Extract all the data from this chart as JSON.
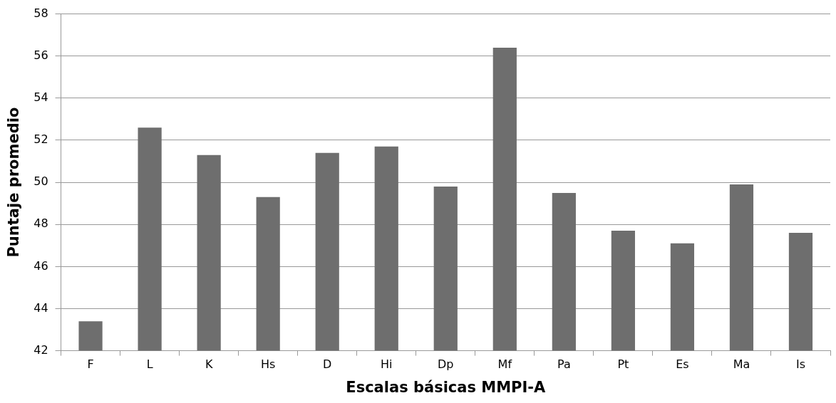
{
  "chart_data": {
    "type": "bar",
    "xlabel": "Escalas básicas MMPI-A",
    "ylabel": "Puntaje promedio",
    "categories": [
      "F",
      "L",
      "K",
      "Hs",
      "D",
      "Hi",
      "Dp",
      "Mf",
      "Pa",
      "Pt",
      "Es",
      "Ma",
      "Is"
    ],
    "values": [
      43.4,
      52.6,
      51.3,
      49.3,
      51.4,
      51.7,
      49.8,
      56.4,
      49.5,
      47.7,
      47.1,
      49.9,
      47.6
    ],
    "color": "#6e6e6e",
    "ylim": [
      42,
      58
    ],
    "yticks": [
      42,
      44,
      46,
      48,
      50,
      52,
      54,
      56,
      58
    ],
    "grid": "y",
    "legend": false
  }
}
